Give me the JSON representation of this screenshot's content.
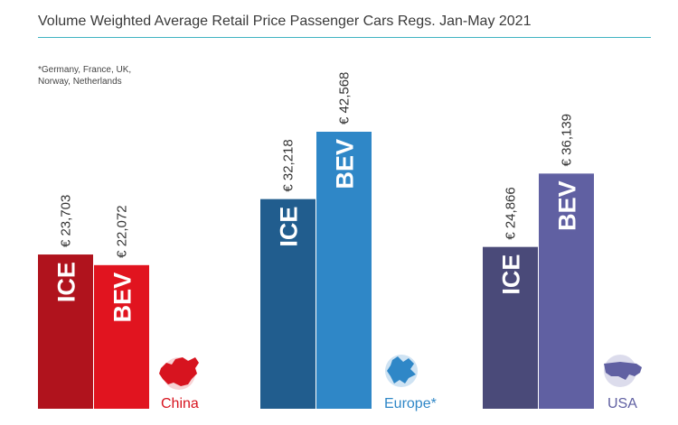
{
  "title": "Volume Weighted Average Retail Price Passenger Cars Regs. Jan-May 2021",
  "footnote_line1": "*Germany, France, UK,",
  "footnote_line2": "Norway, Netherlands",
  "colors": {
    "title_rule": "#3fb3c2",
    "china_ice": "#b0131d",
    "china_bev": "#e1141f",
    "china_text": "#d7141f",
    "europe_ice": "#215d8e",
    "europe_bev": "#2f87c7",
    "europe_text": "#2f87c7",
    "usa_ice": "#4a4a79",
    "usa_bev": "#6060a2",
    "usa_text": "#6060a2"
  },
  "icons": {
    "china": "china-map-icon",
    "europe": "europe-map-icon",
    "usa": "usa-map-icon"
  },
  "chart_data": {
    "type": "bar",
    "categories": [
      "China",
      "Europe*",
      "USA"
    ],
    "series": [
      {
        "name": "ICE",
        "values": [
          23703,
          32218,
          24866
        ],
        "labels": [
          "€ 23,703",
          "€ 32,218",
          "€ 24,866"
        ]
      },
      {
        "name": "BEV",
        "values": [
          22072,
          42568,
          36139
        ],
        "labels": [
          "€ 22,072",
          "€ 42,568",
          "€ 36,139"
        ]
      }
    ],
    "ylim": [
      0,
      42568
    ],
    "grid": false,
    "legend": "none"
  }
}
